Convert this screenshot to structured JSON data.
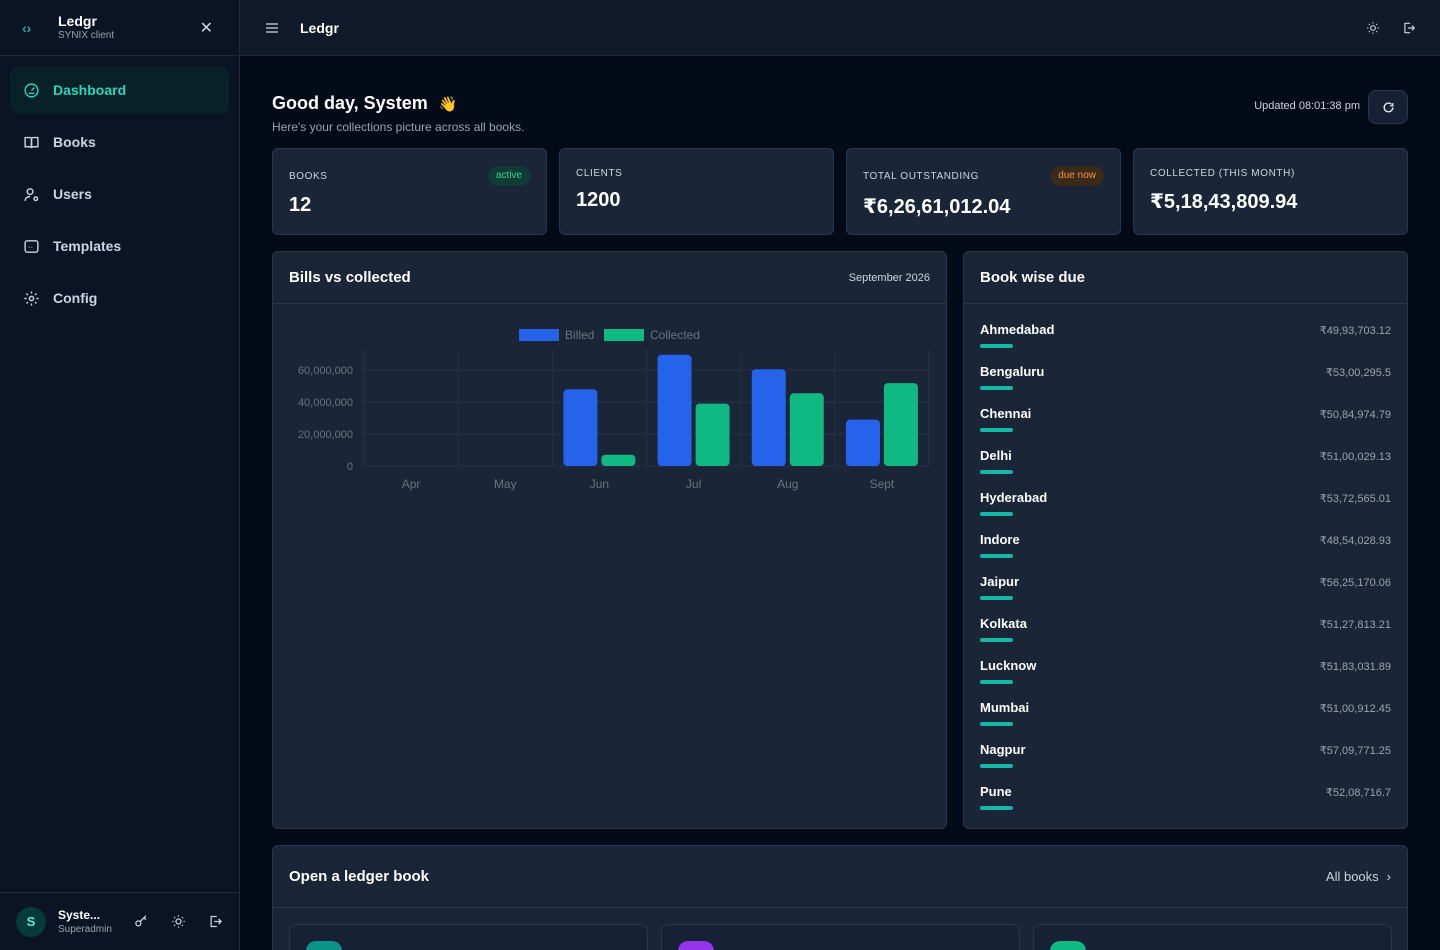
{
  "brand": {
    "name": "Ledgr",
    "subtitle": "SYNIX client"
  },
  "nav": [
    {
      "label": "Dashboard",
      "icon": "dashboard-gauge-icon",
      "active": true
    },
    {
      "label": "Books",
      "icon": "book-icon",
      "active": false
    },
    {
      "label": "Users",
      "icon": "user-gear-icon",
      "active": false
    },
    {
      "label": "Templates",
      "icon": "template-icon",
      "active": false
    },
    {
      "label": "Config",
      "icon": "gear-icon",
      "active": false
    }
  ],
  "user": {
    "initial": "S",
    "name": "Syste...",
    "role": "Superadmin"
  },
  "topbar": {
    "title": "Ledgr"
  },
  "greeting": {
    "title": "Good day, System",
    "emoji": "👋",
    "subtitle": "Here's your collections picture across all books.",
    "updated": "Updated 08:01:38 pm"
  },
  "stats": [
    {
      "label": "BOOKS",
      "value": "12",
      "badge": "active",
      "badge_color": "#34d399"
    },
    {
      "label": "CLIENTS",
      "value": "1200",
      "badge": "",
      "badge_color": ""
    },
    {
      "label": "TOTAL OUTSTANDING",
      "value": "₹6,26,61,012.04",
      "badge": "due now",
      "badge_color": "#fb923c"
    },
    {
      "label": "COLLECTED (THIS MONTH)",
      "value": "₹5,18,43,809.94",
      "badge": "",
      "badge_color": ""
    }
  ],
  "chart_panel": {
    "title": "Bills vs collected",
    "period": "September 2026"
  },
  "chart_data": {
    "type": "bar",
    "categories": [
      "Apr",
      "May",
      "Jun",
      "Jul",
      "Aug",
      "Sept"
    ],
    "series": [
      {
        "name": "Billed",
        "color": "#2563eb",
        "values": [
          0,
          0,
          48000000,
          69500000,
          60500000,
          29000000
        ]
      },
      {
        "name": "Collected",
        "color": "#10b981",
        "values": [
          0,
          0,
          7000000,
          39000000,
          45500000,
          51800000
        ]
      }
    ],
    "ylim": [
      0,
      70000000
    ],
    "yticks": [
      "0",
      "20,000,000",
      "40,000,000",
      "60,000,000"
    ],
    "ytick_values": [
      0,
      20000000,
      40000000,
      60000000
    ],
    "legend": "top-center",
    "grid": true
  },
  "book_panel": {
    "title": "Book wise due",
    "books": [
      {
        "name": "Ahmedabad",
        "amount": "₹49,93,703.12"
      },
      {
        "name": "Bengaluru",
        "amount": "₹53,00,295.5"
      },
      {
        "name": "Chennai",
        "amount": "₹50,84,974.79"
      },
      {
        "name": "Delhi",
        "amount": "₹51,00,029.13"
      },
      {
        "name": "Hyderabad",
        "amount": "₹53,72,565.01"
      },
      {
        "name": "Indore",
        "amount": "₹48,54,028.93"
      },
      {
        "name": "Jaipur",
        "amount": "₹56,25,170.06"
      },
      {
        "name": "Kolkata",
        "amount": "₹51,27,813.21"
      },
      {
        "name": "Lucknow",
        "amount": "₹51,83,031.89"
      },
      {
        "name": "Mumbai",
        "amount": "₹51,00,912.45"
      },
      {
        "name": "Nagpur",
        "amount": "₹57,09,771.25"
      },
      {
        "name": "Pune",
        "amount": "₹52,08,716.7"
      }
    ]
  },
  "ledger_panel": {
    "title": "Open a ledger book",
    "all_books": "All books",
    "card_colors": [
      "#0d9488",
      "#9333ea",
      "#10b981"
    ]
  }
}
